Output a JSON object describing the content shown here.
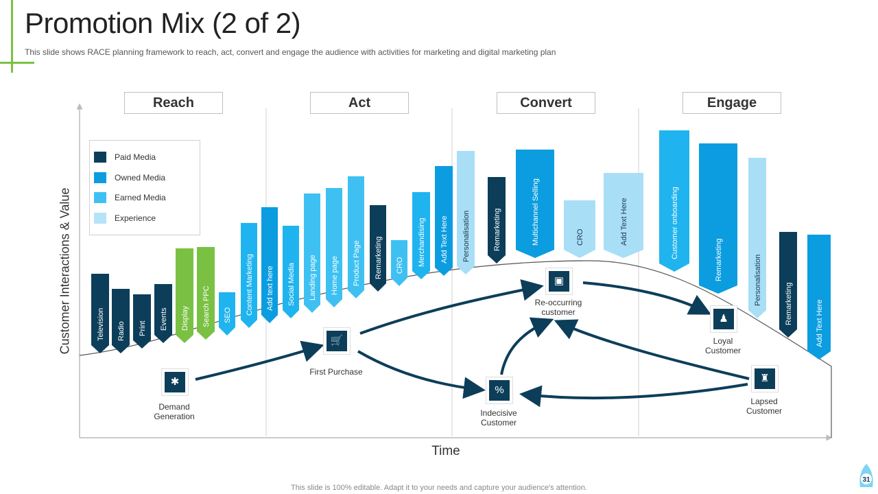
{
  "title": "Promotion Mix (2 of 2)",
  "subtitle": "This slide shows RACE planning framework to reach, act, convert  and engage  the audience with activities for marketing and digital marketing plan",
  "footer": "This slide is 100% editable. Adapt it to your needs and capture your audience's attention.",
  "page_number": "31",
  "colors": {
    "paid": "#0c3e5a",
    "owned": "#0b9de0",
    "earned": "#1fb4ef",
    "experience": "#a9def7",
    "green": "#7ac143",
    "accent": "#7ac143"
  },
  "stages": [
    "Reach",
    "Act",
    "Convert",
    "Engage"
  ],
  "axis": {
    "y_label": "Customer Interactions & Value",
    "x_label": "Time"
  },
  "legend": [
    {
      "label": "Paid Media",
      "color": "#0c3e5a"
    },
    {
      "label": "Owned Media",
      "color": "#0b9de0"
    },
    {
      "label": "Earned Media",
      "color": "#3ec1f2"
    },
    {
      "label": "Experience",
      "color": "#b5e3f8"
    }
  ],
  "bars_left": [
    {
      "label": "Television",
      "color": "#0c3e5a"
    },
    {
      "label": "Radio",
      "color": "#0c3e5a"
    },
    {
      "label": "Print",
      "color": "#0c3e5a"
    },
    {
      "label": "Events",
      "color": "#0c3e5a"
    },
    {
      "label": "Display",
      "color": "#7ac143"
    },
    {
      "label": "Search PPC",
      "color": "#7ac143"
    },
    {
      "label": "SEO",
      "color": "#1fb4ef"
    },
    {
      "label": "Content Marketing",
      "color": "#1fb4ef"
    },
    {
      "label": "Add text here",
      "color": "#0b9de0"
    },
    {
      "label": "Social Media",
      "color": "#1fb4ef"
    },
    {
      "label": "Landing page",
      "color": "#3ec1f2"
    },
    {
      "label": "Home page",
      "color": "#3ec1f2"
    },
    {
      "label": "Product Page",
      "color": "#3ec1f2"
    },
    {
      "label": "Remarketing",
      "color": "#0c3e5a"
    },
    {
      "label": "CRO",
      "color": "#3ec1f2"
    },
    {
      "label": "Merchandising",
      "color": "#1fb4ef"
    },
    {
      "label": "Add Text Here",
      "color": "#0b9de0"
    },
    {
      "label": "Personalisation",
      "color": "#a9def7"
    }
  ],
  "bars_right": [
    {
      "label": "Remarketing",
      "color": "#0c3e5a"
    },
    {
      "label": "Multichannel Selling",
      "color": "#0b9de0"
    },
    {
      "label": "CRO",
      "color": "#a9def7"
    },
    {
      "label": "Add Text Here",
      "color": "#a9def7"
    },
    {
      "label": "Customer onboarding",
      "color": "#1fb4ef"
    },
    {
      "label": "Remarketing",
      "color": "#0b9de0"
    },
    {
      "label": "Personalisation",
      "color": "#a9def7"
    },
    {
      "label": "Remarketing",
      "color": "#0c3e5a"
    },
    {
      "label": "Add Text Here",
      "color": "#0b9de0"
    }
  ],
  "nodes": {
    "demand": {
      "label": "Demand Generation",
      "icon": "network-icon"
    },
    "first_purchase": {
      "label": "First Purchase",
      "icon": "shopping-cart-icon"
    },
    "reoccurring": {
      "label": "Re-occurring customer",
      "icon": "presentation-icon"
    },
    "indecisive": {
      "label": "Indecisive Customer",
      "icon": "percent-icon"
    },
    "loyal": {
      "label": "Loyal Customer",
      "icon": "person-desk-icon"
    },
    "lapsed": {
      "label": "Lapsed Customer",
      "icon": "person-chart-icon"
    }
  }
}
